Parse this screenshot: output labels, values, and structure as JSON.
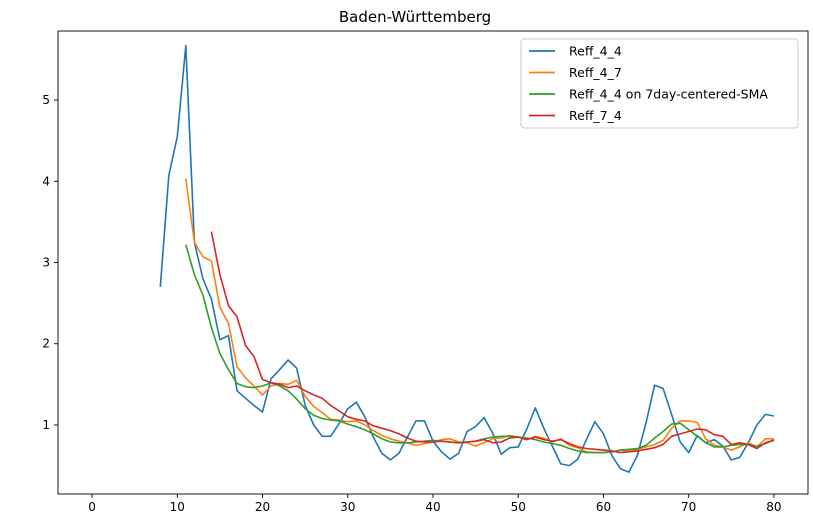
{
  "chart_data": {
    "type": "line",
    "title": "Baden-Württemberg",
    "xlabel": "",
    "ylabel": "",
    "xlim": [
      -4,
      84
    ],
    "ylim": [
      0.15,
      5.85
    ],
    "xticks": [
      0,
      10,
      20,
      30,
      40,
      50,
      60,
      70,
      80
    ],
    "yticks": [
      1,
      2,
      3,
      4,
      5
    ],
    "grid": false,
    "legend_position": "top-right",
    "series": [
      {
        "name": "Reff_4_4",
        "color": "#1f77b4",
        "x": [
          8,
          9,
          10,
          11,
          12,
          13,
          14,
          15,
          16,
          17,
          18,
          19,
          20,
          21,
          22,
          23,
          24,
          25,
          26,
          27,
          28,
          29,
          30,
          31,
          32,
          33,
          34,
          35,
          36,
          37,
          38,
          39,
          40,
          41,
          42,
          43,
          44,
          45,
          46,
          47,
          48,
          49,
          50,
          51,
          52,
          53,
          54,
          55,
          56,
          57,
          58,
          59,
          60,
          61,
          62,
          63,
          64,
          65,
          66,
          67,
          68,
          69,
          70,
          71,
          72,
          73,
          74,
          75,
          76,
          77,
          78,
          79,
          80
        ],
        "y": [
          2.7,
          4.07,
          4.55,
          5.67,
          3.25,
          2.8,
          2.55,
          2.05,
          2.1,
          1.42,
          1.33,
          1.24,
          1.16,
          1.57,
          1.68,
          1.8,
          1.7,
          1.24,
          1.0,
          0.86,
          0.86,
          1.02,
          1.2,
          1.28,
          1.1,
          0.85,
          0.65,
          0.57,
          0.65,
          0.85,
          1.05,
          1.05,
          0.8,
          0.67,
          0.58,
          0.65,
          0.92,
          0.98,
          1.09,
          0.9,
          0.64,
          0.72,
          0.73,
          0.95,
          1.21,
          0.96,
          0.74,
          0.52,
          0.5,
          0.58,
          0.82,
          1.04,
          0.89,
          0.62,
          0.46,
          0.42,
          0.63,
          1.03,
          1.49,
          1.45,
          1.13,
          0.79,
          0.66,
          0.87,
          0.78,
          0.82,
          0.74,
          0.57,
          0.6,
          0.78,
          1.0,
          1.13,
          1.11
        ]
      },
      {
        "name": "Reff_4_7",
        "color": "#ff7f0e",
        "x": [
          11,
          12,
          13,
          14,
          15,
          16,
          17,
          18,
          19,
          20,
          21,
          22,
          23,
          24,
          25,
          26,
          27,
          28,
          29,
          30,
          31,
          32,
          33,
          34,
          35,
          36,
          37,
          38,
          39,
          40,
          41,
          42,
          43,
          44,
          45,
          46,
          47,
          48,
          49,
          50,
          51,
          52,
          53,
          54,
          55,
          56,
          57,
          58,
          59,
          60,
          61,
          62,
          63,
          64,
          65,
          66,
          67,
          68,
          69,
          70,
          71,
          72,
          73,
          74,
          75,
          76,
          77,
          78,
          79,
          80
        ],
        "y": [
          4.03,
          3.25,
          3.07,
          3.02,
          2.45,
          2.25,
          1.72,
          1.58,
          1.48,
          1.37,
          1.48,
          1.51,
          1.5,
          1.55,
          1.35,
          1.23,
          1.15,
          1.07,
          1.06,
          1.04,
          1.05,
          1.0,
          0.93,
          0.87,
          0.83,
          0.8,
          0.78,
          0.75,
          0.77,
          0.79,
          0.82,
          0.83,
          0.79,
          0.78,
          0.74,
          0.78,
          0.83,
          0.84,
          0.87,
          0.85,
          0.82,
          0.86,
          0.84,
          0.79,
          0.83,
          0.75,
          0.72,
          0.67,
          0.66,
          0.66,
          0.67,
          0.69,
          0.68,
          0.7,
          0.73,
          0.76,
          0.81,
          0.96,
          1.05,
          1.05,
          1.03,
          0.83,
          0.75,
          0.73,
          0.69,
          0.73,
          0.78,
          0.73,
          0.83,
          0.83
        ]
      },
      {
        "name": "Reff_4_4 on 7day-centered-SMA",
        "color": "#2ca02c",
        "x": [
          11,
          12,
          13,
          14,
          15,
          16,
          17,
          18,
          19,
          20,
          21,
          22,
          23,
          24,
          25,
          26,
          27,
          28,
          29,
          30,
          31,
          32,
          33,
          34,
          35,
          36,
          37,
          38,
          39,
          40,
          41,
          42,
          43,
          44,
          45,
          46,
          47,
          48,
          49,
          50,
          51,
          52,
          53,
          54,
          55,
          56,
          57,
          58,
          59,
          60,
          61,
          62,
          63,
          64,
          65,
          66,
          67,
          68,
          69,
          70,
          71,
          72,
          73,
          74,
          75,
          76,
          77,
          78,
          79,
          80
        ],
        "y": [
          3.22,
          2.85,
          2.6,
          2.2,
          1.88,
          1.68,
          1.51,
          1.47,
          1.46,
          1.48,
          1.52,
          1.48,
          1.42,
          1.32,
          1.2,
          1.12,
          1.08,
          1.06,
          1.05,
          1.01,
          0.98,
          0.94,
          0.89,
          0.83,
          0.79,
          0.78,
          0.78,
          0.79,
          0.8,
          0.81,
          0.8,
          0.79,
          0.78,
          0.79,
          0.8,
          0.83,
          0.85,
          0.86,
          0.86,
          0.85,
          0.84,
          0.82,
          0.79,
          0.77,
          0.75,
          0.71,
          0.68,
          0.66,
          0.66,
          0.66,
          0.67,
          0.69,
          0.7,
          0.71,
          0.75,
          0.84,
          0.92,
          1.01,
          1.02,
          0.94,
          0.86,
          0.78,
          0.73,
          0.73,
          0.75,
          0.76,
          0.76,
          0.74,
          0.77,
          0.82
        ]
      },
      {
        "name": "Reff_7_4",
        "color": "#d62728",
        "x": [
          14,
          15,
          16,
          17,
          18,
          19,
          20,
          21,
          22,
          23,
          24,
          25,
          26,
          27,
          28,
          29,
          30,
          31,
          32,
          33,
          34,
          35,
          36,
          37,
          38,
          39,
          40,
          41,
          42,
          43,
          44,
          45,
          46,
          47,
          48,
          49,
          50,
          51,
          52,
          53,
          54,
          55,
          56,
          57,
          58,
          59,
          60,
          61,
          62,
          63,
          64,
          65,
          66,
          67,
          68,
          69,
          70,
          71,
          72,
          73,
          74,
          75,
          76,
          77,
          78,
          79,
          80
        ],
        "y": [
          3.38,
          2.85,
          2.47,
          2.33,
          1.98,
          1.84,
          1.56,
          1.52,
          1.5,
          1.46,
          1.48,
          1.42,
          1.37,
          1.33,
          1.24,
          1.17,
          1.1,
          1.07,
          1.05,
          0.99,
          0.96,
          0.93,
          0.89,
          0.84,
          0.8,
          0.79,
          0.79,
          0.8,
          0.79,
          0.78,
          0.79,
          0.8,
          0.82,
          0.78,
          0.79,
          0.84,
          0.85,
          0.82,
          0.85,
          0.82,
          0.8,
          0.82,
          0.77,
          0.73,
          0.71,
          0.7,
          0.69,
          0.68,
          0.66,
          0.67,
          0.68,
          0.7,
          0.72,
          0.76,
          0.86,
          0.89,
          0.92,
          0.95,
          0.94,
          0.88,
          0.86,
          0.76,
          0.78,
          0.76,
          0.71,
          0.78,
          0.81
        ]
      }
    ]
  }
}
